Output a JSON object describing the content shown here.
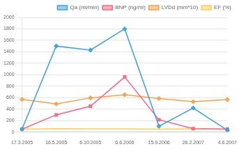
{
  "chart_data": {
    "type": "line",
    "categories": [
      "17.3.2005",
      "16.5.2005",
      "6.10.2005",
      "6.6.2006",
      "15.9.2006",
      "26.2.2007",
      "4.6.2007"
    ],
    "series": [
      {
        "name": "Qa (ml/min)",
        "marker": "diamond",
        "values": [
          50,
          1500,
          1430,
          1800,
          100,
          420,
          30
        ]
      },
      {
        "name": "BNP (ng/ml)",
        "marker": "square",
        "values": [
          50,
          300,
          450,
          960,
          215,
          60,
          50
        ]
      },
      {
        "name": "LVDd (mm*10)",
        "marker": "diamond",
        "values": [
          570,
          490,
          595,
          650,
          585,
          530,
          565
        ]
      },
      {
        "name": "EF (%)",
        "marker": "none",
        "values": [
          50,
          60,
          55,
          55,
          50,
          55,
          50
        ]
      }
    ],
    "ylim": [
      0,
      2000
    ],
    "yticks": [
      0,
      200,
      400,
      600,
      800,
      1000,
      1200,
      1400,
      1600,
      1800,
      2000
    ],
    "grid": true,
    "legend": "upper right"
  }
}
